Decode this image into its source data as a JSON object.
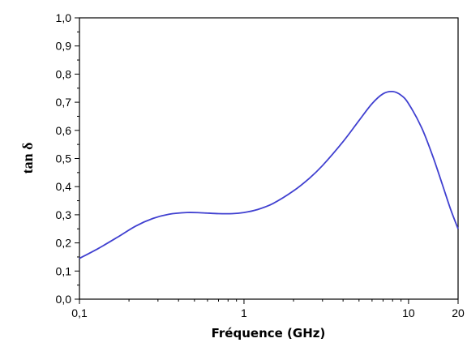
{
  "chart_data": {
    "type": "line",
    "title": "",
    "xlabel": "Fréquence (GHz)",
    "ylabel": "tan δ",
    "xscale": "log",
    "xlim": [
      0.1,
      20
    ],
    "ylim": [
      0.0,
      1.0
    ],
    "grid": false,
    "legend": "none",
    "x_ticks": [
      {
        "value": 0.1,
        "label": "0,1"
      },
      {
        "value": 1,
        "label": "1"
      },
      {
        "value": 10,
        "label": "10"
      },
      {
        "value": 20,
        "label": "20"
      }
    ],
    "y_ticks": [
      {
        "value": 0.0,
        "label": "0,0"
      },
      {
        "value": 0.1,
        "label": "0,1"
      },
      {
        "value": 0.2,
        "label": "0,2"
      },
      {
        "value": 0.3,
        "label": "0,3"
      },
      {
        "value": 0.4,
        "label": "0,4"
      },
      {
        "value": 0.5,
        "label": "0,5"
      },
      {
        "value": 0.6,
        "label": "0,6"
      },
      {
        "value": 0.7,
        "label": "0,7"
      },
      {
        "value": 0.8,
        "label": "0,8"
      },
      {
        "value": 0.9,
        "label": "0,9"
      },
      {
        "value": 1.0,
        "label": "1,0"
      }
    ],
    "series": [
      {
        "color": "#4040d0",
        "x": [
          0.1,
          0.13,
          0.17,
          0.22,
          0.28,
          0.35,
          0.45,
          0.55,
          0.7,
          0.85,
          1.0,
          1.2,
          1.5,
          2.0,
          2.5,
          3.0,
          4.0,
          5.0,
          6.0,
          7.0,
          8.0,
          9.0,
          10.0,
          12.0,
          14.0,
          16.0,
          18.0,
          20.0
        ],
        "y": [
          0.145,
          0.18,
          0.22,
          0.26,
          0.287,
          0.302,
          0.308,
          0.307,
          0.304,
          0.304,
          0.308,
          0.318,
          0.34,
          0.385,
          0.43,
          0.475,
          0.56,
          0.635,
          0.695,
          0.73,
          0.738,
          0.725,
          0.695,
          0.61,
          0.51,
          0.41,
          0.32,
          0.25
        ]
      }
    ]
  }
}
